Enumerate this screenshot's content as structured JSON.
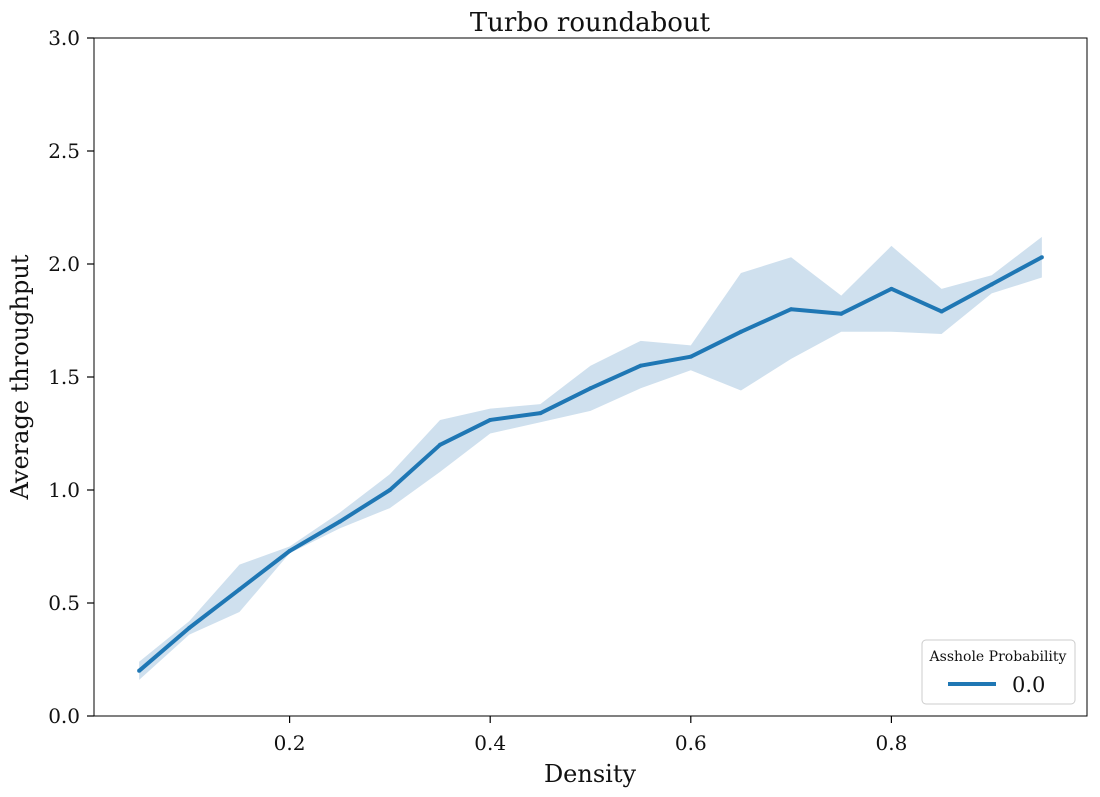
{
  "chart_data": {
    "type": "line",
    "title": "Turbo roundabout",
    "xlabel": "Density",
    "ylabel": "Average throughput",
    "xlim": [
      0.005,
      0.995
    ],
    "ylim": [
      0,
      3
    ],
    "xticks": [
      0.2,
      0.4,
      0.6,
      0.8
    ],
    "xtick_labels": [
      "0.2",
      "0.4",
      "0.6",
      "0.8"
    ],
    "yticks": [
      0,
      0.5,
      1,
      1.5,
      2,
      2.5,
      3
    ],
    "ytick_labels": [
      "0.0",
      "0.5",
      "1.0",
      "1.5",
      "2.0",
      "2.5",
      "3.0"
    ],
    "grid": false,
    "legend": {
      "title": "Asshole Probability",
      "placement": "bottom-right"
    },
    "series": [
      {
        "name": "0.0",
        "color": "#1f77b4",
        "band_color": "#cfe0ee",
        "x": [
          0.05,
          0.1,
          0.15,
          0.2,
          0.25,
          0.3,
          0.35,
          0.4,
          0.45,
          0.5,
          0.55,
          0.6,
          0.65,
          0.7,
          0.75,
          0.8,
          0.85,
          0.9,
          0.95
        ],
        "y": [
          0.2,
          0.39,
          0.56,
          0.73,
          0.86,
          1.0,
          1.2,
          1.31,
          1.34,
          1.45,
          1.55,
          1.59,
          1.7,
          1.8,
          1.78,
          1.89,
          1.79,
          1.91,
          2.03
        ],
        "y_lower": [
          0.16,
          0.36,
          0.46,
          0.72,
          0.83,
          0.92,
          1.08,
          1.25,
          1.3,
          1.35,
          1.45,
          1.53,
          1.44,
          1.58,
          1.7,
          1.7,
          1.69,
          1.87,
          1.94
        ],
        "y_upper": [
          0.24,
          0.42,
          0.67,
          0.75,
          0.9,
          1.07,
          1.31,
          1.36,
          1.38,
          1.55,
          1.66,
          1.64,
          1.96,
          2.03,
          1.86,
          2.08,
          1.89,
          1.95,
          2.12
        ]
      }
    ]
  }
}
